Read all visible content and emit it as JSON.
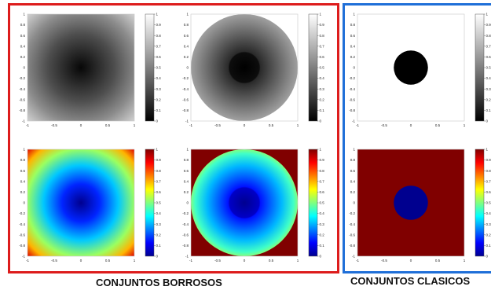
{
  "captions": {
    "fuzzy": "CONJUNTOS BORROSOS",
    "crisp": "CONJUNTOS CLASICOS"
  },
  "colors": {
    "fuzzy_frame": "#dd1c1c",
    "crisp_frame": "#1f6fd8",
    "outside_jet": "#800000",
    "crisp_inside_gray": "#000000",
    "crisp_inside_jet": "#00008f"
  },
  "axes": {
    "x_ticks": [
      "-1",
      "-0.5",
      "0",
      "0.5",
      "1"
    ],
    "y_ticks": [
      "1",
      "0.8",
      "0.6",
      "0.4",
      "0.2",
      "0",
      "-0.2",
      "-0.4",
      "-0.6",
      "-0.8",
      "-1"
    ]
  },
  "colorbar_ticks": [
    "1",
    "0.9",
    "0.8",
    "0.7",
    "0.6",
    "0.5",
    "0.4",
    "0.3",
    "0.2",
    "0.1",
    "0"
  ],
  "panels": [
    {
      "id": "fuzzy-square-gray",
      "group": "fuzzy",
      "colormap": "gray",
      "membership": "fuzzy-square"
    },
    {
      "id": "fuzzy-disk-gray",
      "group": "fuzzy",
      "colormap": "gray",
      "membership": "fuzzy-disk"
    },
    {
      "id": "crisp-disk-gray",
      "group": "crisp",
      "colormap": "gray",
      "membership": "crisp-disk"
    },
    {
      "id": "fuzzy-square-jet",
      "group": "fuzzy",
      "colormap": "jet",
      "membership": "fuzzy-square"
    },
    {
      "id": "fuzzy-disk-jet",
      "group": "fuzzy",
      "colormap": "jet",
      "membership": "fuzzy-disk"
    },
    {
      "id": "crisp-disk-jet",
      "group": "crisp",
      "colormap": "jet",
      "membership": "crisp-disk"
    }
  ]
}
